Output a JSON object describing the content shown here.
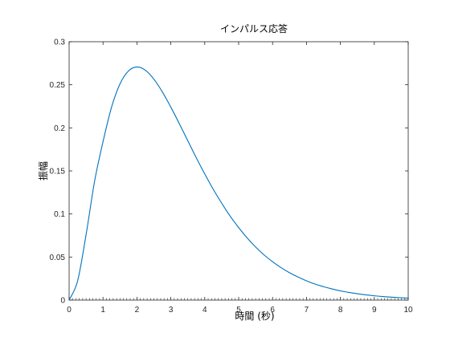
{
  "chart_data": {
    "type": "line",
    "title": "インパルス応答",
    "xlabel": "時間 (秒)",
    "ylabel": "振幅",
    "xlim": [
      0,
      10
    ],
    "ylim": [
      0,
      0.3
    ],
    "x_ticks": [
      "0",
      "1",
      "2",
      "3",
      "4",
      "5",
      "6",
      "7",
      "8",
      "9",
      "10"
    ],
    "y_ticks": [
      "0",
      "0.05",
      "0.1",
      "0.15",
      "0.2",
      "0.25",
      "0.3"
    ],
    "grid": false,
    "line_color": "#0072BD",
    "series": [
      {
        "x": [
          0,
          0.25,
          0.5,
          0.75,
          1,
          1.25,
          1.5,
          1.75,
          2,
          2.25,
          2.5,
          2.75,
          3,
          3.25,
          3.5,
          3.75,
          4,
          4.25,
          4.5,
          4.75,
          5,
          5.25,
          5.5,
          5.75,
          6,
          6.25,
          6.5,
          6.75,
          7,
          7.25,
          7.5,
          7.75,
          8,
          8.25,
          8.5,
          8.75,
          9,
          9.25,
          9.5,
          9.75,
          10
        ],
        "y": [
          0,
          0.0221,
          0.0758,
          0.1377,
          0.1839,
          0.2238,
          0.251,
          0.266,
          0.2707,
          0.2669,
          0.2565,
          0.2417,
          0.224,
          0.2049,
          0.185,
          0.1653,
          0.1465,
          0.1287,
          0.1125,
          0.0974,
          0.0842,
          0.0722,
          0.0616,
          0.0524,
          0.0446,
          0.0377,
          0.0318,
          0.0268,
          0.0224,
          0.0186,
          0.0156,
          0.013,
          0.0107,
          0.0089,
          0.0074,
          0.0061,
          0.005,
          0.0041,
          0.0034,
          0.0028,
          0.0023
        ]
      }
    ]
  }
}
